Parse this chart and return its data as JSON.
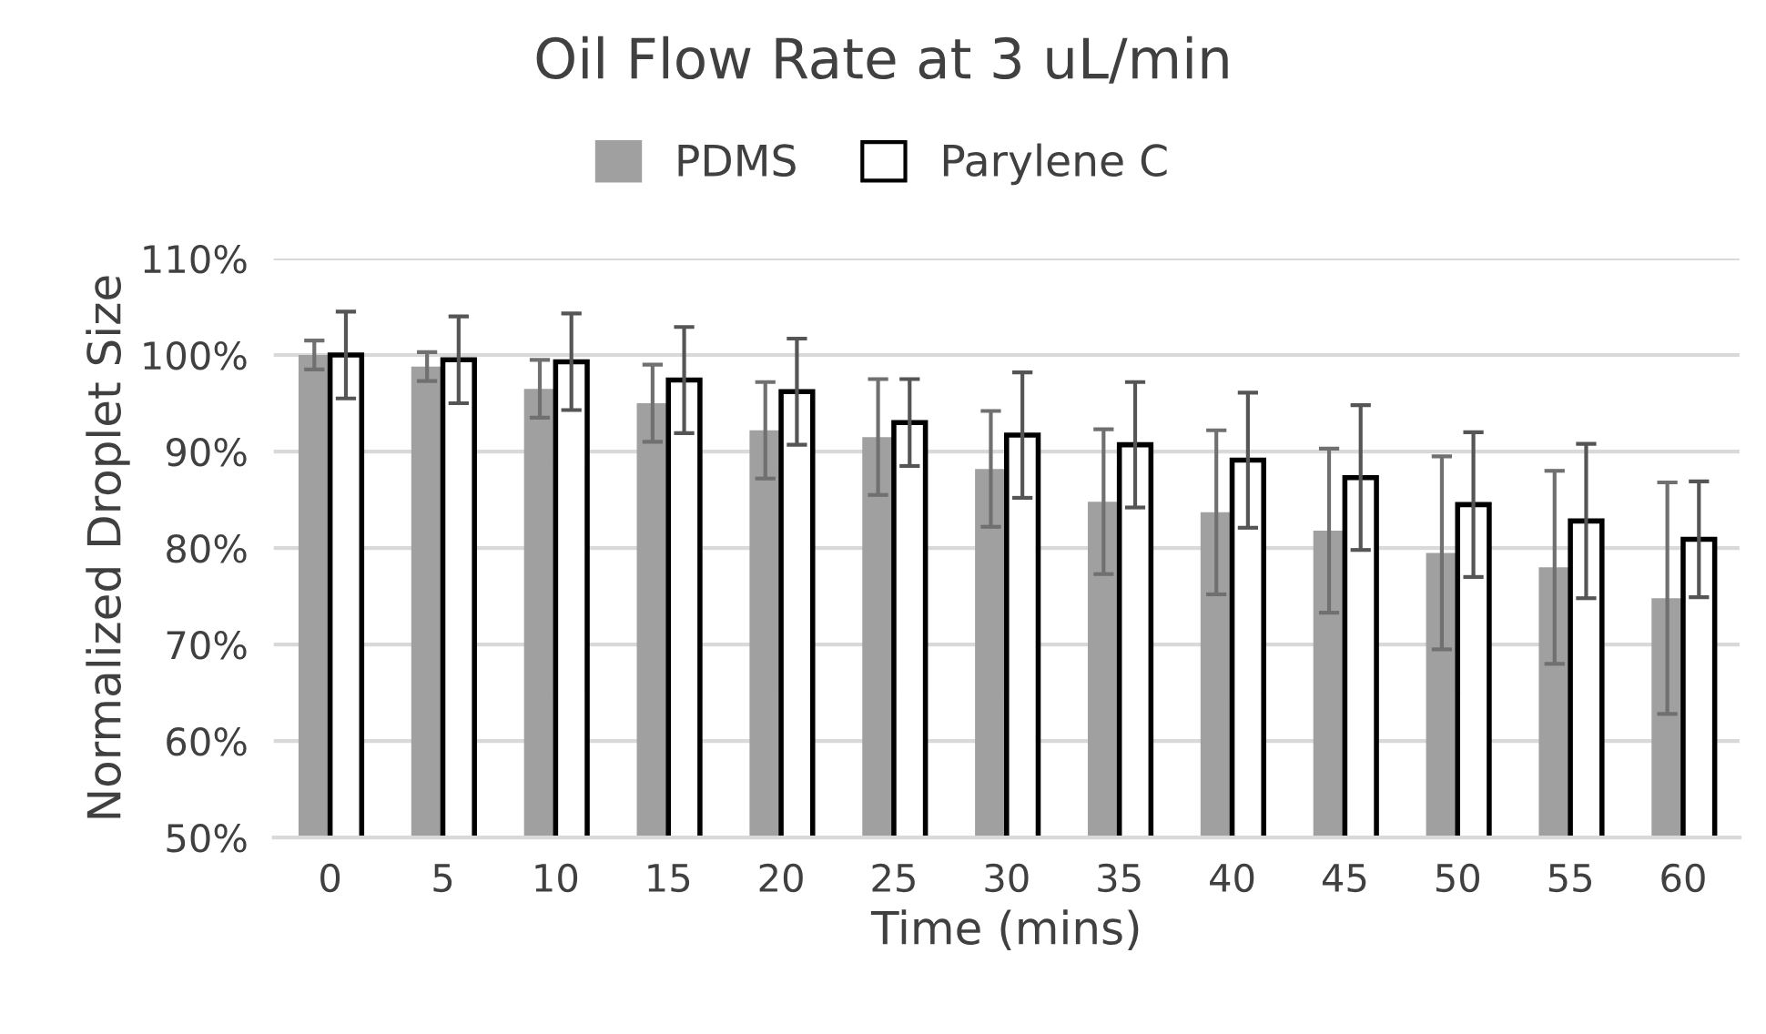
{
  "chart_data": {
    "type": "bar",
    "title": "Oil Flow Rate at 3 uL/min",
    "xlabel": "Time (mins)",
    "ylabel": "Normalized Droplet Size",
    "categories": [
      "0",
      "5",
      "10",
      "15",
      "20",
      "25",
      "30",
      "35",
      "40",
      "45",
      "50",
      "55",
      "60"
    ],
    "series": [
      {
        "name": "PDMS",
        "color": "#a0a0a0",
        "values": [
          100,
          98.8,
          96.5,
          95,
          92.2,
          91.5,
          88.2,
          84.8,
          83.7,
          81.8,
          79.5,
          78,
          74.8
        ],
        "errors": [
          1.5,
          1.5,
          3,
          4,
          5,
          6,
          6,
          7.5,
          8.5,
          8.5,
          10,
          10,
          12
        ]
      },
      {
        "name": "Parylene C",
        "color": "#ffffff",
        "values": [
          100,
          99.5,
          99.3,
          97.4,
          96.2,
          93,
          91.7,
          90.7,
          89.1,
          87.3,
          84.5,
          82.8,
          80.9
        ],
        "errors": [
          4.5,
          4.5,
          5,
          5.5,
          5.5,
          4.5,
          6.5,
          6.5,
          7,
          7.5,
          7.5,
          8,
          6
        ]
      }
    ],
    "ylim": [
      50,
      110
    ],
    "yticks": [
      {
        "value": 50,
        "label": "50%"
      },
      {
        "value": 60,
        "label": "60%"
      },
      {
        "value": 70,
        "label": "70%"
      },
      {
        "value": 80,
        "label": "80%"
      },
      {
        "value": 90,
        "label": "90%"
      },
      {
        "value": 100,
        "label": "100%"
      },
      {
        "value": 110,
        "label": "110%"
      }
    ],
    "grid": "y",
    "legend": "top"
  }
}
